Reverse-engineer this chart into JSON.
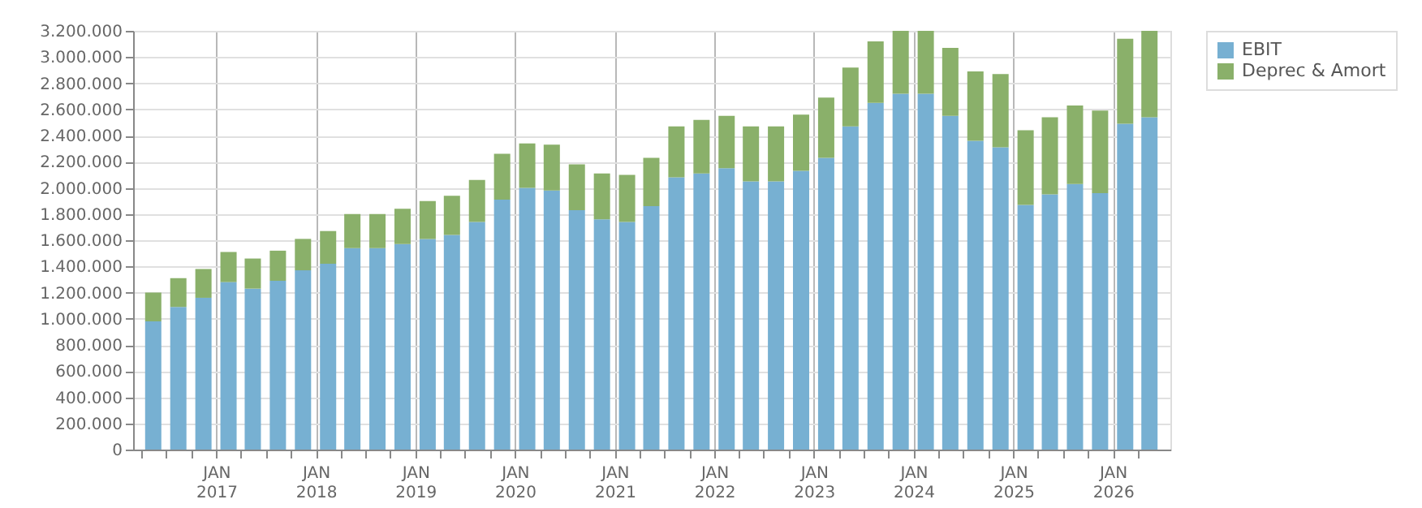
{
  "chart_data": {
    "type": "bar",
    "stacked": true,
    "x": [
      "2016-05-15",
      "2016-08-15",
      "2016-11-15",
      "2017-02-15",
      "2017-05-15",
      "2017-08-15",
      "2017-11-15",
      "2018-02-15",
      "2018-05-15",
      "2018-08-15",
      "2018-11-15",
      "2019-02-15",
      "2019-05-15",
      "2019-08-15",
      "2019-11-15",
      "2020-02-15",
      "2020-05-15",
      "2020-08-15",
      "2020-11-15",
      "2021-02-15",
      "2021-05-15",
      "2021-08-15",
      "2021-11-15",
      "2022-02-15",
      "2022-05-15",
      "2022-08-15",
      "2022-11-15",
      "2023-02-15",
      "2023-05-15",
      "2023-08-15",
      "2023-11-15",
      "2024-02-15",
      "2024-05-15",
      "2024-08-15",
      "2024-11-15",
      "2025-02-15",
      "2025-05-15",
      "2025-08-15",
      "2025-11-15",
      "2026-02-15",
      "2026-05-15"
    ],
    "series": [
      {
        "name": "EBIT",
        "color": "#77b0d2",
        "values": [
          980000,
          1090000,
          1160000,
          1280000,
          1230000,
          1290000,
          1370000,
          1420000,
          1540000,
          1540000,
          1570000,
          1610000,
          1640000,
          1740000,
          1910000,
          2000000,
          1980000,
          1830000,
          1760000,
          1740000,
          1860000,
          2080000,
          2110000,
          2150000,
          2050000,
          2050000,
          2130000,
          2230000,
          2470000,
          2650000,
          2720000,
          2720000,
          2550000,
          2360000,
          2310000,
          1870000,
          1950000,
          2030000,
          1960000,
          2490000,
          2540000
        ]
      },
      {
        "name": "Deprec & Amort",
        "color": "#8ab06a",
        "values": [
          220000,
          220000,
          220000,
          230000,
          230000,
          230000,
          240000,
          250000,
          260000,
          260000,
          270000,
          290000,
          300000,
          320000,
          350000,
          340000,
          350000,
          350000,
          350000,
          360000,
          370000,
          390000,
          410000,
          400000,
          420000,
          420000,
          430000,
          460000,
          450000,
          470000,
          480000,
          480000,
          520000,
          530000,
          560000,
          570000,
          590000,
          600000,
          630000,
          650000,
          660000
        ]
      }
    ],
    "xlim": [
      "2016-04-01",
      "2026-07-01"
    ],
    "xticks": [
      {
        "value": "2016-04-01",
        "label": null
      },
      {
        "value": "2016-07-01",
        "label": null
      },
      {
        "value": "2016-10-01",
        "label": null
      },
      {
        "value": "2017-01-01",
        "label": "JAN 2017"
      },
      {
        "value": "2017-04-01",
        "label": null
      },
      {
        "value": "2017-07-01",
        "label": null
      },
      {
        "value": "2017-10-01",
        "label": null
      },
      {
        "value": "2018-01-01",
        "label": "JAN 2018"
      },
      {
        "value": "2018-04-01",
        "label": null
      },
      {
        "value": "2018-07-01",
        "label": null
      },
      {
        "value": "2018-10-01",
        "label": null
      },
      {
        "value": "2019-01-01",
        "label": "JAN 2019"
      },
      {
        "value": "2019-04-01",
        "label": null
      },
      {
        "value": "2019-07-01",
        "label": null
      },
      {
        "value": "2019-10-01",
        "label": null
      },
      {
        "value": "2020-01-01",
        "label": "JAN 2020"
      },
      {
        "value": "2020-04-01",
        "label": null
      },
      {
        "value": "2020-07-01",
        "label": null
      },
      {
        "value": "2020-10-01",
        "label": null
      },
      {
        "value": "2021-01-01",
        "label": "JAN 2021"
      },
      {
        "value": "2021-04-01",
        "label": null
      },
      {
        "value": "2021-07-01",
        "label": null
      },
      {
        "value": "2021-10-01",
        "label": null
      },
      {
        "value": "2022-01-01",
        "label": "JAN 2022"
      },
      {
        "value": "2022-04-01",
        "label": null
      },
      {
        "value": "2022-07-01",
        "label": null
      },
      {
        "value": "2022-10-01",
        "label": null
      },
      {
        "value": "2023-01-01",
        "label": "JAN 2023"
      },
      {
        "value": "2023-04-01",
        "label": null
      },
      {
        "value": "2023-07-01",
        "label": null
      },
      {
        "value": "2023-10-01",
        "label": null
      },
      {
        "value": "2024-01-01",
        "label": "JAN 2024"
      },
      {
        "value": "2024-04-01",
        "label": null
      },
      {
        "value": "2024-07-01",
        "label": null
      },
      {
        "value": "2024-10-01",
        "label": null
      },
      {
        "value": "2025-01-01",
        "label": "JAN 2025"
      },
      {
        "value": "2025-04-01",
        "label": null
      },
      {
        "value": "2025-07-01",
        "label": null
      },
      {
        "value": "2025-10-01",
        "label": null
      },
      {
        "value": "2026-01-01",
        "label": "JAN 2026"
      },
      {
        "value": "2026-04-01",
        "label": null
      }
    ],
    "ylim": [
      0,
      3200000
    ],
    "yticks": [
      0,
      {
        "value": 200000,
        "label": "200.000"
      },
      {
        "value": 400000,
        "label": "400.000"
      },
      {
        "value": 600000,
        "label": "600.000"
      },
      {
        "value": 800000,
        "label": "800.000"
      },
      {
        "value": 1000000,
        "label": "1.000.000"
      },
      {
        "value": 1200000,
        "label": "1.200.000"
      },
      {
        "value": 1400000,
        "label": "1.400.000"
      },
      {
        "value": 1600000,
        "label": "1.600.000"
      },
      {
        "value": 1800000,
        "label": "1.800.000"
      },
      {
        "value": 2000000,
        "label": "2.000.000"
      },
      {
        "value": 2200000,
        "label": "2.200.000"
      },
      {
        "value": 2400000,
        "label": "2.400.000"
      },
      {
        "value": 2600000,
        "label": "2.600.000"
      },
      {
        "value": 2800000,
        "label": "2.800.000"
      },
      {
        "value": 3000000,
        "label": "3.000.000"
      },
      {
        "value": 3200000,
        "label": "3.200.000"
      }
    ],
    "grid": true,
    "legend": "top right"
  }
}
